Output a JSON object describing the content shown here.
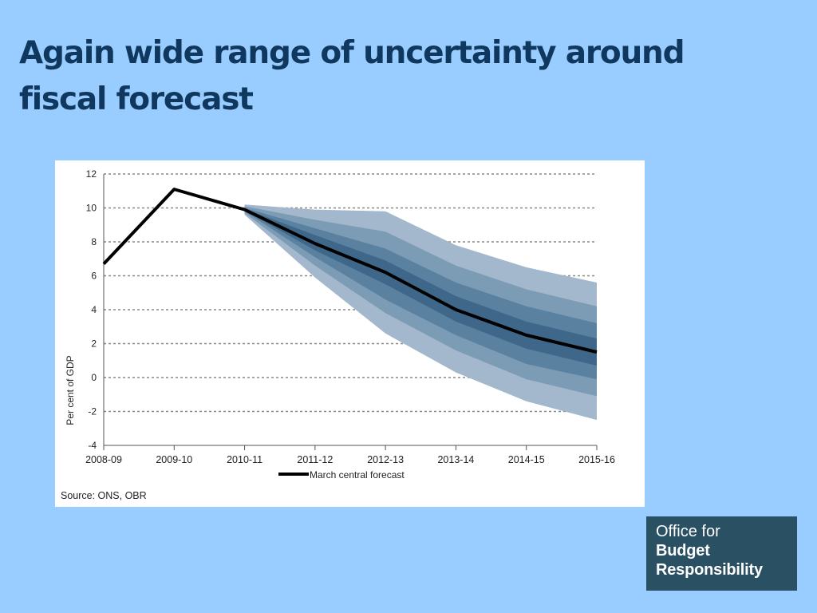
{
  "slide": {
    "title": "Again wide range of uncertainty around fiscal forecast"
  },
  "chart_data": {
    "type": "area",
    "title": "",
    "xlabel": "",
    "ylabel": "Per cent of GDP",
    "categories": [
      "2008-09",
      "2009-10",
      "2010-11",
      "2011-12",
      "2012-13",
      "2013-14",
      "2014-15",
      "2015-16"
    ],
    "ylim": [
      -4,
      12
    ],
    "yticks": [
      12,
      10,
      8,
      6,
      4,
      2,
      0,
      -2,
      -4
    ],
    "grid": true,
    "legend_position": "bottom",
    "series": [
      {
        "name": "March central forecast",
        "values": [
          6.7,
          11.1,
          9.9,
          7.9,
          6.2,
          4.0,
          2.5,
          1.5
        ]
      }
    ],
    "fan_bands": [
      {
        "level": 1,
        "lower": [
          null,
          null,
          9.6,
          5.9,
          2.6,
          0.3,
          -1.4,
          -2.5
        ],
        "upper": [
          null,
          null,
          10.2,
          9.9,
          9.8,
          7.8,
          6.5,
          5.6
        ]
      },
      {
        "level": 2,
        "lower": [
          null,
          null,
          9.7,
          6.6,
          3.8,
          1.6,
          -0.1,
          -1.1
        ],
        "upper": [
          null,
          null,
          10.1,
          9.3,
          8.6,
          6.6,
          5.2,
          4.2
        ]
      },
      {
        "level": 3,
        "lower": [
          null,
          null,
          9.8,
          7.1,
          4.6,
          2.5,
          0.8,
          -0.1
        ],
        "upper": [
          null,
          null,
          10.0,
          8.8,
          7.6,
          5.6,
          4.2,
          3.2
        ]
      },
      {
        "level": 4,
        "lower": [
          null,
          null,
          9.85,
          7.5,
          5.5,
          3.3,
          1.7,
          0.7
        ],
        "upper": [
          null,
          null,
          9.95,
          8.4,
          6.9,
          4.8,
          3.3,
          2.3
        ]
      }
    ],
    "source": "Source: ONS, OBR"
  },
  "colors": {
    "background": "#99ccff",
    "title": "#10385f",
    "central_line": "#000000",
    "band_outer": "#a3b8cc",
    "band_2": "#7c9bb5",
    "band_3": "#5b81a0",
    "band_inner": "#3e6789",
    "logo_bg": "#2a5063"
  },
  "logo": {
    "line1": "Office for",
    "line2": "Budget",
    "line3": "Responsibility"
  }
}
